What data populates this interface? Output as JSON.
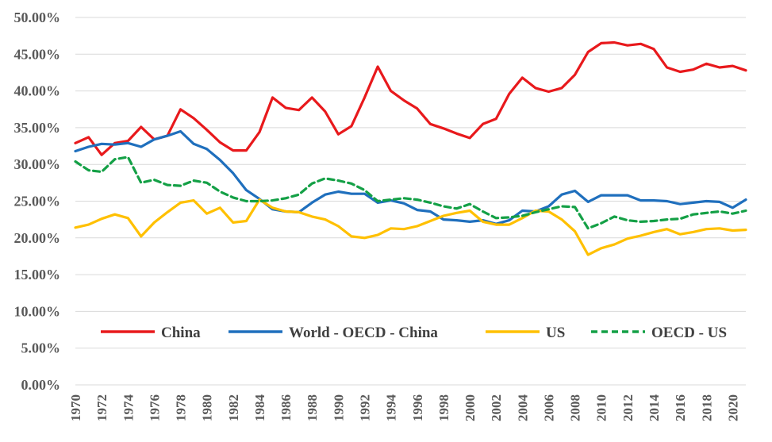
{
  "chart_data": {
    "type": "line",
    "x": [
      1970,
      1971,
      1972,
      1973,
      1974,
      1975,
      1976,
      1977,
      1978,
      1979,
      1980,
      1981,
      1982,
      1983,
      1984,
      1985,
      1986,
      1987,
      1988,
      1989,
      1990,
      1991,
      1992,
      1993,
      1994,
      1995,
      1996,
      1997,
      1998,
      1999,
      2000,
      2001,
      2002,
      2003,
      2004,
      2005,
      2006,
      2007,
      2008,
      2009,
      2010,
      2011,
      2012,
      2013,
      2014,
      2015,
      2016,
      2017,
      2018,
      2019,
      2020,
      2021
    ],
    "x_tick_labels": [
      "1970",
      "1972",
      "1974",
      "1976",
      "1978",
      "1980",
      "1982",
      "1984",
      "1986",
      "1988",
      "1990",
      "1992",
      "1994",
      "1996",
      "1998",
      "2000",
      "2002",
      "2004",
      "2006",
      "2008",
      "2010",
      "2012",
      "2014",
      "2016",
      "2018",
      "2020"
    ],
    "y_tick_labels": [
      "0.00%",
      "5.00%",
      "10.00%",
      "15.00%",
      "20.00%",
      "25.00%",
      "30.00%",
      "35.00%",
      "40.00%",
      "45.00%",
      "50.00%"
    ],
    "ylim": [
      0,
      50
    ],
    "grid": true,
    "legend_position": "bottom-inside",
    "series": [
      {
        "name": "China",
        "color": "#e8191c",
        "dash": "solid",
        "values": [
          32.9,
          33.7,
          31.3,
          32.9,
          33.2,
          35.1,
          33.4,
          33.9,
          37.5,
          36.3,
          34.7,
          33.0,
          31.9,
          31.9,
          34.4,
          39.1,
          37.7,
          37.4,
          39.1,
          37.2,
          34.1,
          35.2,
          39.1,
          43.3,
          40.0,
          38.7,
          37.6,
          35.5,
          34.9,
          34.2,
          33.6,
          35.5,
          36.2,
          39.6,
          41.8,
          40.4,
          39.9,
          40.4,
          42.2,
          45.3,
          46.5,
          46.6,
          46.2,
          46.4,
          45.7,
          43.2,
          42.6,
          42.9,
          43.7,
          43.2,
          43.4,
          42.8
        ]
      },
      {
        "name": "World - OECD - China",
        "color": "#1f6fbd",
        "dash": "solid",
        "values": [
          31.8,
          32.4,
          32.8,
          32.7,
          32.9,
          32.4,
          33.4,
          33.9,
          34.5,
          32.8,
          32.1,
          30.6,
          28.8,
          26.5,
          25.3,
          23.9,
          23.6,
          23.5,
          24.8,
          25.9,
          26.3,
          26.0,
          26.0,
          24.8,
          25.1,
          24.7,
          23.8,
          23.6,
          22.5,
          22.4,
          22.2,
          22.4,
          21.9,
          22.4,
          23.7,
          23.6,
          24.3,
          25.9,
          26.4,
          24.9,
          25.8,
          25.8,
          25.8,
          25.1,
          25.1,
          25.0,
          24.6,
          24.8,
          25.0,
          24.9,
          24.1,
          25.2
        ]
      },
      {
        "name": "US",
        "color": "#ffc000",
        "dash": "solid",
        "values": [
          21.4,
          21.8,
          22.6,
          23.2,
          22.7,
          20.2,
          22.1,
          23.5,
          24.8,
          25.1,
          23.3,
          24.1,
          22.1,
          22.3,
          25.2,
          24.1,
          23.6,
          23.5,
          22.9,
          22.5,
          21.6,
          20.2,
          20.0,
          20.4,
          21.3,
          21.2,
          21.6,
          22.3,
          23.0,
          23.4,
          23.7,
          22.2,
          21.8,
          21.8,
          22.7,
          23.7,
          23.6,
          22.5,
          20.9,
          17.7,
          18.6,
          19.1,
          19.9,
          20.3,
          20.8,
          21.2,
          20.5,
          20.8,
          21.2,
          21.3,
          21.0,
          21.1
        ]
      },
      {
        "name": "OECD - US",
        "color": "#14a046",
        "dash": "dashed",
        "values": [
          30.4,
          29.2,
          29.0,
          30.7,
          31.0,
          27.5,
          27.9,
          27.2,
          27.1,
          27.8,
          27.5,
          26.3,
          25.5,
          25.0,
          25.0,
          25.1,
          25.4,
          25.9,
          27.4,
          28.1,
          27.8,
          27.4,
          26.5,
          25.0,
          25.2,
          25.4,
          25.2,
          24.8,
          24.3,
          24.0,
          24.6,
          23.6,
          22.7,
          22.8,
          23.0,
          23.5,
          23.9,
          24.3,
          24.2,
          21.3,
          22.0,
          22.9,
          22.4,
          22.2,
          22.3,
          22.5,
          22.6,
          23.2,
          23.4,
          23.6,
          23.3,
          23.7
        ]
      }
    ]
  }
}
